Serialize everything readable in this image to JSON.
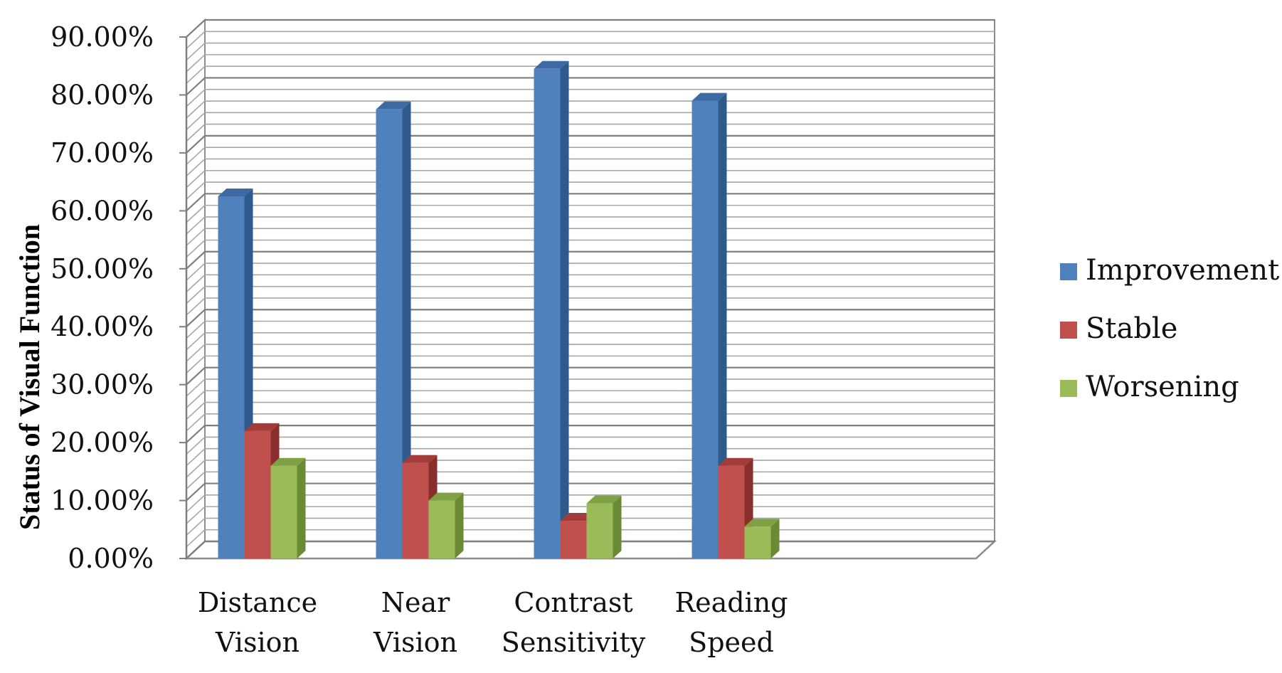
{
  "chart_data": {
    "type": "bar",
    "style": "3d-clustered-column",
    "ylabel": "Status of Visual Function",
    "xlabel": "",
    "ylim": [
      0,
      0.9
    ],
    "ytick_step": 0.1,
    "yticks": [
      "0.00%",
      "10.00%",
      "20.00%",
      "30.00%",
      "40.00%",
      "50.00%",
      "60.00%",
      "70.00%",
      "80.00%",
      "90.00%"
    ],
    "categories": [
      [
        "Distance",
        "Vision"
      ],
      [
        "Near",
        "Vision"
      ],
      [
        "Contrast",
        "Sensitivity"
      ],
      [
        "Reading",
        "Speed"
      ]
    ],
    "series": [
      {
        "name": "Improvement",
        "color": "#4F81BD",
        "side": "#2F5A8C",
        "top": "#3D6AA3",
        "values": [
          0.625,
          0.775,
          0.845,
          0.79
        ]
      },
      {
        "name": "Stable",
        "color": "#C0504D",
        "side": "#8A2E2B",
        "top": "#A33C39",
        "values": [
          0.22,
          0.165,
          0.065,
          0.16
        ]
      },
      {
        "name": "Worsening",
        "color": "#9BBB59",
        "side": "#6A8A35",
        "top": "#7FA043",
        "values": [
          0.16,
          0.1,
          0.095,
          0.055
        ]
      }
    ],
    "legend_position": "right",
    "grid": true
  }
}
